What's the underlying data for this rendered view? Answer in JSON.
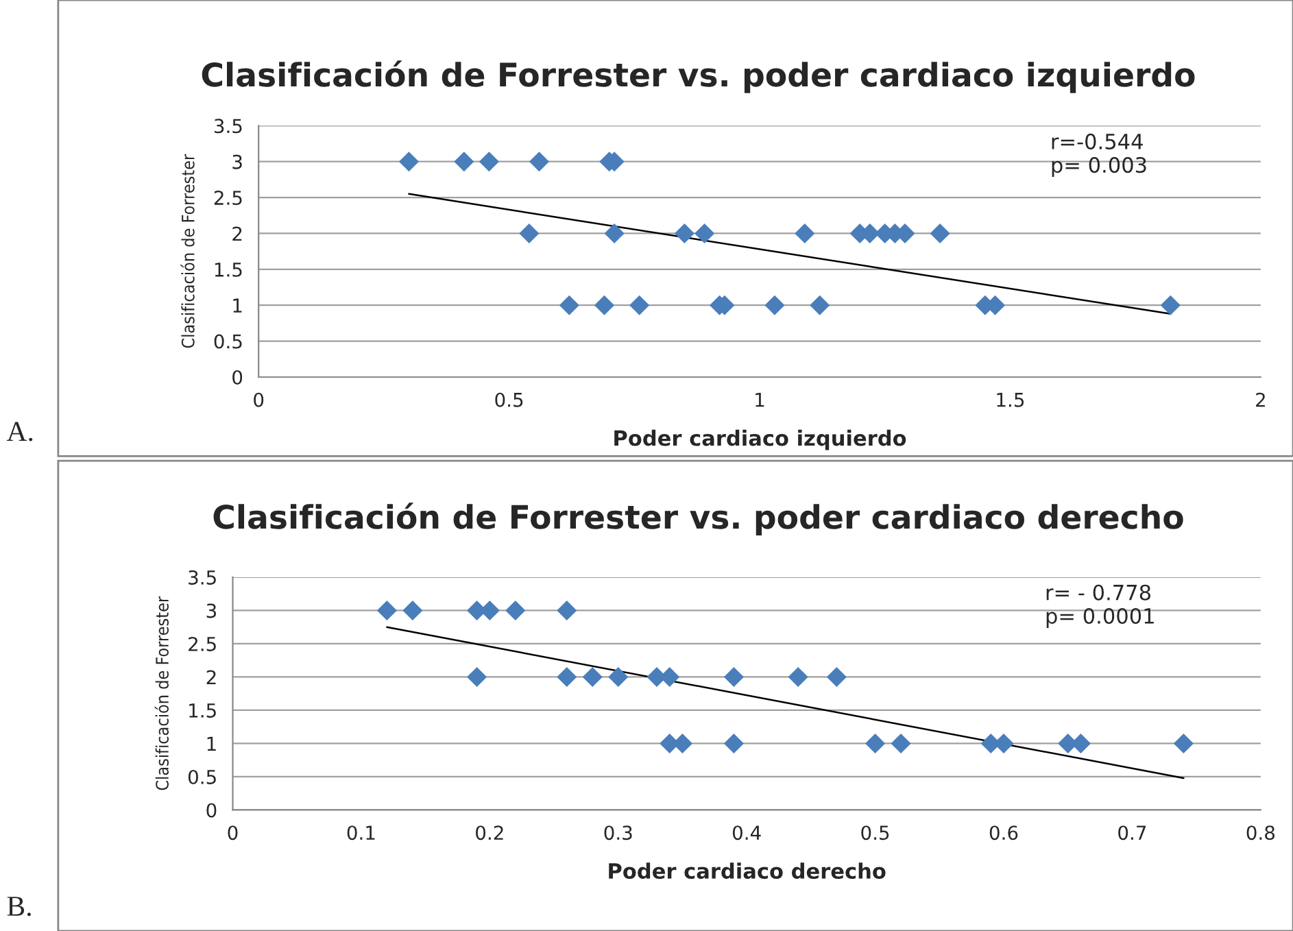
{
  "chart_data": [
    {
      "type": "scatter",
      "title": "Clasificación de Forrester vs. poder cardiaco izquierdo",
      "xlabel": "Poder cardiaco izquierdo",
      "ylabel": "Clasificación de Forrester",
      "marker": "diamond",
      "grid": "y",
      "legend": false,
      "xlim": [
        0,
        2
      ],
      "xticks": [
        0,
        0.5,
        1,
        1.5,
        2
      ],
      "ylim": [
        0,
        3.5
      ],
      "yticks": [
        0,
        0.5,
        1,
        1.5,
        2,
        2.5,
        3,
        3.5
      ],
      "annotations": [
        "r=-0.544\np= 0.003",
        "A."
      ],
      "series": [
        {
          "color": "#4a7ebb",
          "x": [
            0.3,
            0.41,
            0.46,
            0.56,
            0.7,
            0.71,
            0.54,
            0.71,
            0.85,
            0.89,
            1.09,
            1.2,
            1.22,
            1.25,
            1.27,
            1.29,
            1.36,
            0.62,
            0.69,
            0.76,
            0.92,
            0.93,
            1.03,
            1.12,
            1.45,
            1.47,
            1.82
          ],
          "values": [
            3,
            3,
            3,
            3,
            3,
            3,
            2,
            2,
            2,
            2,
            2,
            2,
            2,
            2,
            2,
            2,
            2,
            1,
            1,
            1,
            1,
            1,
            1,
            1,
            1,
            1,
            1
          ]
        },
        {
          "type": "line",
          "color": "#000000",
          "marker": "none",
          "x": [
            0.3,
            1.82
          ],
          "values": [
            2.55,
            0.88
          ]
        }
      ]
    },
    {
      "type": "scatter",
      "title": "Clasificación de Forrester vs. poder cardiaco derecho",
      "xlabel": "Poder cardiaco derecho",
      "ylabel": "Clasificación de Forrester",
      "marker": "diamond",
      "grid": "y",
      "legend": false,
      "xlim": [
        0,
        0.8
      ],
      "xticks": [
        0,
        0.1,
        0.2,
        0.3,
        0.4,
        0.5,
        0.6,
        0.7,
        0.8
      ],
      "ylim": [
        0,
        3.5
      ],
      "yticks": [
        0,
        0.5,
        1,
        1.5,
        2,
        2.5,
        3,
        3.5
      ],
      "annotations": [
        "r= - 0.778\np= 0.0001",
        "B."
      ],
      "series": [
        {
          "color": "#4a7ebb",
          "x": [
            0.12,
            0.14,
            0.19,
            0.2,
            0.22,
            0.26,
            0.19,
            0.26,
            0.28,
            0.3,
            0.33,
            0.34,
            0.39,
            0.44,
            0.47,
            0.34,
            0.35,
            0.39,
            0.5,
            0.52,
            0.59,
            0.6,
            0.65,
            0.66,
            0.74
          ],
          "values": [
            3,
            3,
            3,
            3,
            3,
            3,
            2,
            2,
            2,
            2,
            2,
            2,
            2,
            2,
            2,
            1,
            1,
            1,
            1,
            1,
            1,
            1,
            1,
            1,
            1
          ]
        },
        {
          "type": "line",
          "color": "#000000",
          "marker": "none",
          "x": [
            0.12,
            0.74
          ],
          "values": [
            2.75,
            0.48
          ]
        }
      ]
    }
  ]
}
